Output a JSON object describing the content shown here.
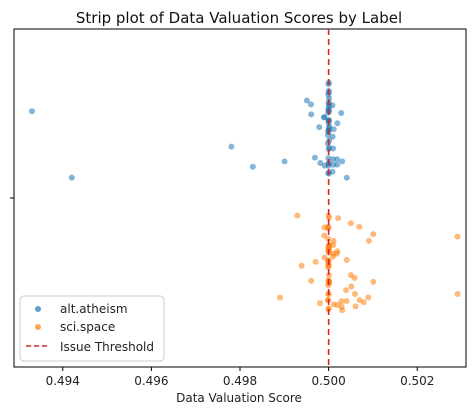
{
  "chart_data": {
    "type": "scatter",
    "title": "Strip plot of Data Valuation Scores by Label",
    "xlabel": "Data Valuation Score",
    "ylabel": "",
    "xlim": [
      0.4929,
      0.5031
    ],
    "x_ticks": [
      0.494,
      0.496,
      0.498,
      0.5,
      0.502
    ],
    "x_tick_labels": [
      "0.494",
      "0.496",
      "0.498",
      "0.500",
      "0.502"
    ],
    "categories": [
      "alt.atheism",
      "sci.space"
    ],
    "grid": false,
    "legend_position": "lower-left",
    "series": [
      {
        "name": "alt.atheism",
        "color": "#1f77b4",
        "values": [
          0.4933,
          0.4942,
          0.4978,
          0.4983,
          0.499,
          0.4996,
          0.4995,
          0.4996,
          0.4997,
          0.4998,
          0.4998,
          0.4999,
          0.4999,
          0.4999,
          0.5,
          0.5,
          0.5,
          0.5,
          0.5,
          0.5,
          0.5,
          0.5,
          0.5,
          0.5,
          0.5,
          0.5,
          0.5,
          0.5,
          0.5,
          0.5,
          0.5,
          0.5,
          0.5,
          0.5,
          0.5,
          0.5,
          0.5,
          0.5,
          0.5,
          0.5,
          0.5,
          0.5,
          0.5,
          0.5,
          0.5,
          0.5,
          0.5,
          0.5001,
          0.5001,
          0.5001,
          0.5001,
          0.5001,
          0.5001,
          0.5001,
          0.5002,
          0.5002,
          0.5002,
          0.5003,
          0.5003,
          0.5004
        ]
      },
      {
        "name": "sci.space",
        "color": "#ff7f0e",
        "values": [
          0.4989,
          0.4993,
          0.4994,
          0.4996,
          0.4997,
          0.4998,
          0.4999,
          0.4999,
          0.4999,
          0.5,
          0.5,
          0.5,
          0.5,
          0.5,
          0.5,
          0.5,
          0.5,
          0.5,
          0.5,
          0.5,
          0.5,
          0.5,
          0.5,
          0.5,
          0.5,
          0.5,
          0.5,
          0.5,
          0.5,
          0.5,
          0.5,
          0.5,
          0.5,
          0.5,
          0.5,
          0.5,
          0.5,
          0.5,
          0.5,
          0.5,
          0.5,
          0.5001,
          0.5001,
          0.5001,
          0.5001,
          0.5001,
          0.5002,
          0.5002,
          0.5002,
          0.5002,
          0.5003,
          0.5003,
          0.5003,
          0.5004,
          0.5004,
          0.5004,
          0.5005,
          0.5005,
          0.5005,
          0.5006,
          0.5006,
          0.5006,
          0.5007,
          0.5007,
          0.5008,
          0.5009,
          0.5009,
          0.501,
          0.501,
          0.5029,
          0.5029
        ]
      }
    ],
    "threshold": {
      "name": "Issue Threshold",
      "value": 0.5,
      "color": "#d62728",
      "style": "dashed"
    }
  }
}
